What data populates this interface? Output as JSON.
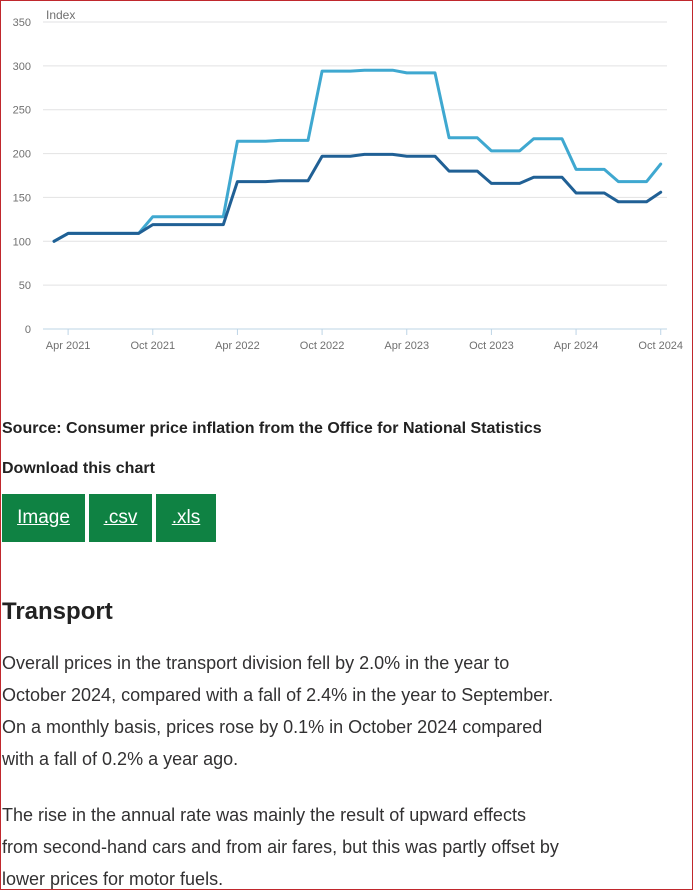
{
  "chart_data": {
    "type": "line",
    "ylabel": "Index",
    "ylim": [
      0,
      350
    ],
    "yticks": [
      "0",
      "50",
      "100",
      "150",
      "200",
      "250",
      "300",
      "350"
    ],
    "x": [
      "2021-03",
      "2021-04",
      "2021-05",
      "2021-06",
      "2021-07",
      "2021-08",
      "2021-09",
      "2021-10",
      "2021-11",
      "2021-12",
      "2022-01",
      "2022-02",
      "2022-03",
      "2022-04",
      "2022-05",
      "2022-06",
      "2022-07",
      "2022-08",
      "2022-09",
      "2022-10",
      "2022-11",
      "2022-12",
      "2023-01",
      "2023-02",
      "2023-03",
      "2023-04",
      "2023-05",
      "2023-06",
      "2023-07",
      "2023-08",
      "2023-09",
      "2023-10",
      "2023-11",
      "2023-12",
      "2024-01",
      "2024-02",
      "2024-03",
      "2024-04",
      "2024-05",
      "2024-06",
      "2024-07",
      "2024-08",
      "2024-09",
      "2024-10"
    ],
    "xtick_labels": [
      "Apr 2021",
      "Oct 2021",
      "Apr 2022",
      "Oct 2022",
      "Apr 2023",
      "Oct 2023",
      "Apr 2024",
      "Oct 2024"
    ],
    "xtick_positions": [
      "2021-04",
      "2021-10",
      "2022-04",
      "2022-10",
      "2023-04",
      "2023-10",
      "2024-04",
      "2024-10"
    ],
    "series": [
      {
        "color": "#3fa8d0",
        "values": [
          100,
          109,
          109,
          109,
          109,
          109,
          109,
          128,
          128,
          128,
          128,
          128,
          128,
          214,
          214,
          214,
          215,
          215,
          215,
          294,
          294,
          294,
          295,
          295,
          295,
          292,
          292,
          292,
          218,
          218,
          218,
          203,
          203,
          203,
          217,
          217,
          217,
          182,
          182,
          182,
          168,
          168,
          168,
          188
        ]
      },
      {
        "color": "#206095",
        "values": [
          100,
          109,
          109,
          109,
          109,
          109,
          109,
          119,
          119,
          119,
          119,
          119,
          119,
          168,
          168,
          168,
          169,
          169,
          169,
          197,
          197,
          197,
          199,
          199,
          199,
          197,
          197,
          197,
          180,
          180,
          180,
          166,
          166,
          166,
          173,
          173,
          173,
          155,
          155,
          155,
          145,
          145,
          145,
          156
        ]
      }
    ]
  },
  "source_text": "Source: Consumer price inflation from the Office for National Statistics",
  "download_title": "Download this chart",
  "buttons": {
    "image": "Image",
    "csv": ".csv",
    "xls": ".xls"
  },
  "section_heading": "Transport",
  "paragraph1_lines": [
    "Overall prices in the transport division fell by 2.0% in the year to",
    "October 2024, compared with a fall of 2.4% in the year to September.",
    "On a monthly basis, prices rose by 0.1% in October 2024 compared",
    "with a fall of 0.2% a year ago."
  ],
  "paragraph2_lines": [
    "The rise in the annual rate was mainly the result of upward effects",
    "from second-hand cars and from air fares, but this was partly offset by",
    "lower prices for motor fuels."
  ]
}
